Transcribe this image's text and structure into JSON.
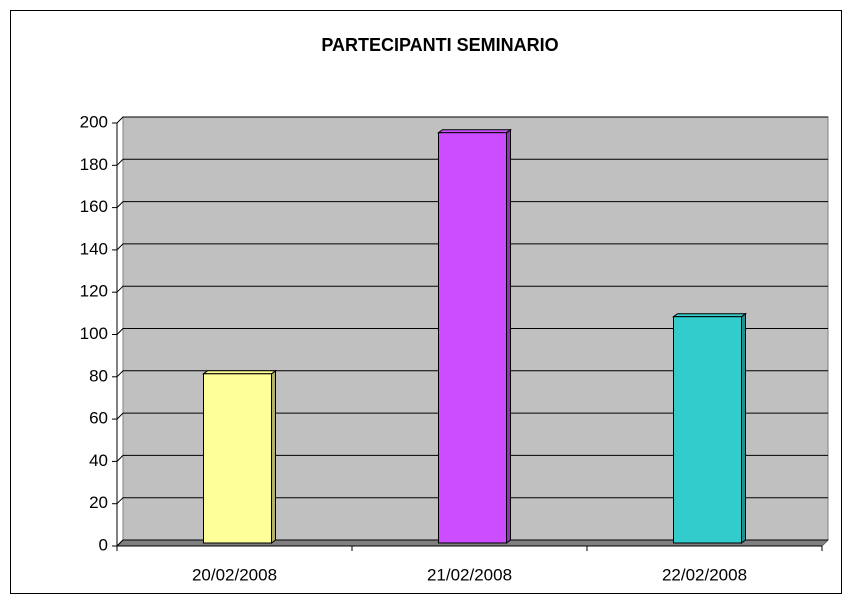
{
  "chart_data": {
    "type": "bar",
    "title": "PARTECIPANTI SEMINARIO",
    "categories": [
      "20/02/2008",
      "21/02/2008",
      "22/02/2008"
    ],
    "values": [
      80,
      194,
      107
    ],
    "colors": [
      "#ffff99",
      "#cc4cff",
      "#33cccc"
    ],
    "ylim": [
      0,
      200
    ],
    "yticks": [
      0,
      20,
      40,
      60,
      80,
      100,
      120,
      140,
      160,
      180,
      200
    ],
    "grid": true
  }
}
